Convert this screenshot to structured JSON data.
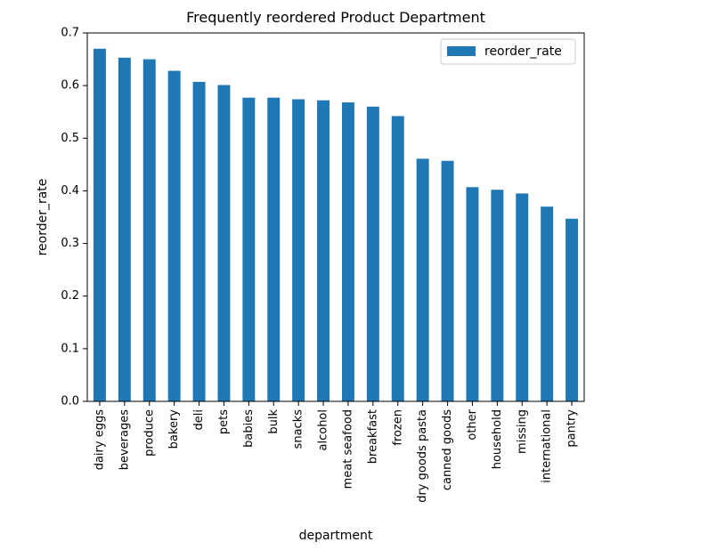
{
  "chart_data": {
    "type": "bar",
    "title": "Frequently reordered Product Department",
    "xlabel": "department",
    "ylabel": "reorder_rate",
    "categories": [
      "dairy eggs",
      "beverages",
      "produce",
      "bakery",
      "deli",
      "pets",
      "babies",
      "bulk",
      "snacks",
      "alcohol",
      "meat seafood",
      "breakfast",
      "frozen",
      "dry goods pasta",
      "canned goods",
      "other",
      "household",
      "missing",
      "international",
      "pantry"
    ],
    "series": [
      {
        "name": "reorder_rate",
        "color": "#1f77b4",
        "values": [
          0.67,
          0.653,
          0.65,
          0.628,
          0.607,
          0.601,
          0.577,
          0.577,
          0.574,
          0.572,
          0.568,
          0.56,
          0.542,
          0.461,
          0.457,
          0.407,
          0.402,
          0.395,
          0.37,
          0.347
        ]
      }
    ],
    "ylim": [
      0,
      0.7
    ],
    "yticks": [
      "0.0",
      "0.1",
      "0.2",
      "0.3",
      "0.4",
      "0.5",
      "0.6",
      "0.7"
    ],
    "grid": false,
    "legend_position": "top-right"
  }
}
